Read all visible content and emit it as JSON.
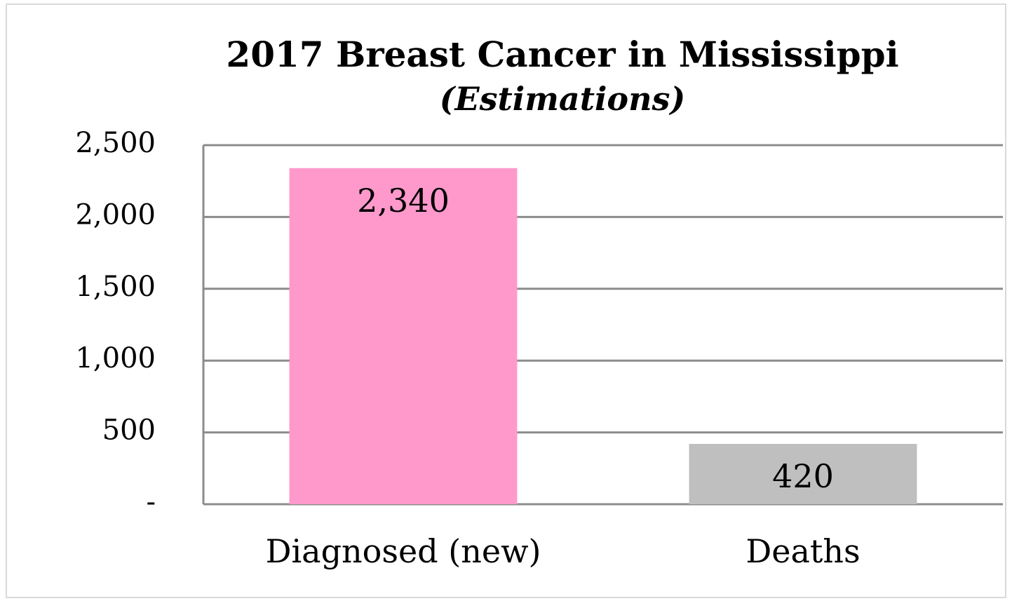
{
  "chart_data": {
    "type": "bar",
    "title": "2017 Breast Cancer in Mississippi",
    "subtitle": "(Estimations)",
    "categories": [
      "Diagnosed (new)",
      "Deaths"
    ],
    "values": [
      2340,
      420
    ],
    "value_labels": [
      "2,340",
      "420"
    ],
    "colors": [
      "#ff99cc",
      "#bfbfbf"
    ],
    "ylim": [
      0,
      2500
    ],
    "yticks": [
      {
        "value": 0,
        "label": "-"
      },
      {
        "value": 500,
        "label": "500"
      },
      {
        "value": 1000,
        "label": "1,000"
      },
      {
        "value": 1500,
        "label": "1,500"
      },
      {
        "value": 2000,
        "label": "2,000"
      },
      {
        "value": 2500,
        "label": "2,500"
      }
    ],
    "grid": true
  }
}
